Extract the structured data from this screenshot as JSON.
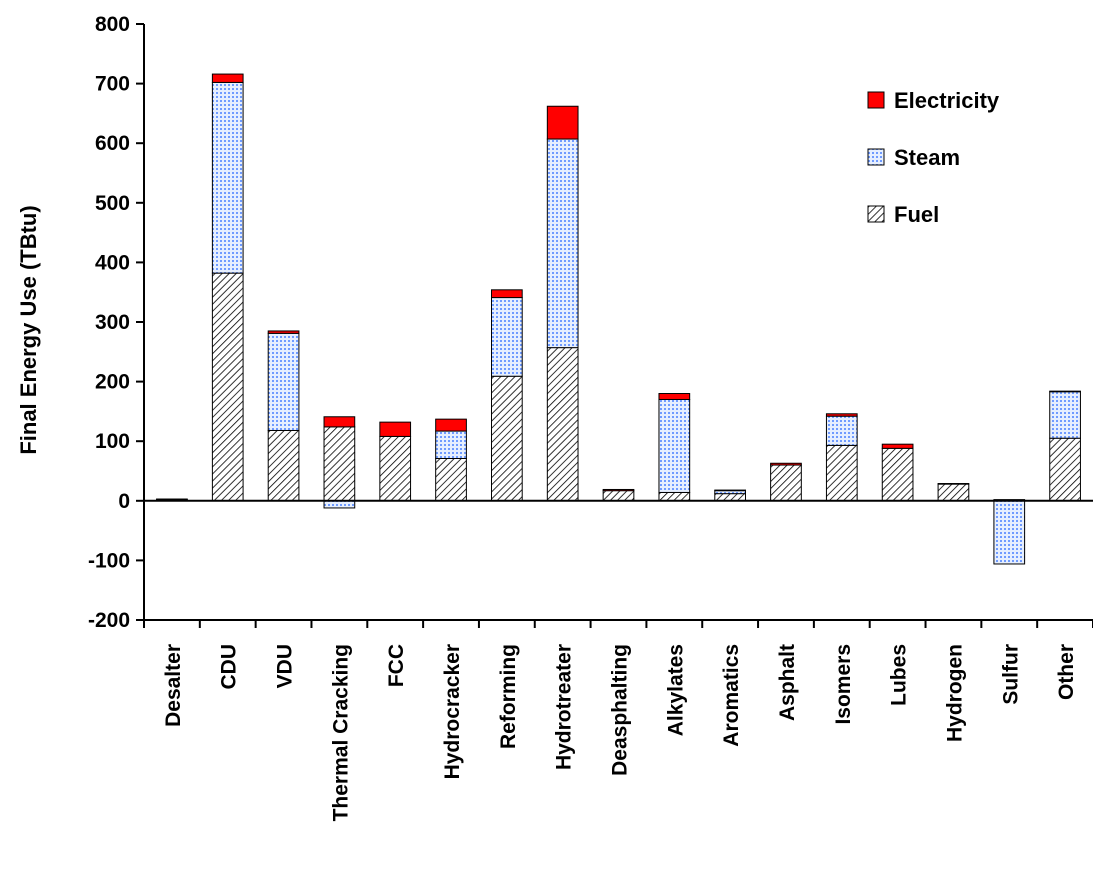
{
  "chart_data": {
    "type": "bar",
    "stacked": true,
    "ylabel": "Final Energy Use (TBtu)",
    "xlabel": "",
    "ylim": [
      -200,
      800
    ],
    "yticks": [
      -200,
      -100,
      0,
      100,
      200,
      300,
      400,
      500,
      600,
      700,
      800
    ],
    "grid": false,
    "legend_position": "top-right",
    "categories": [
      "Desalter",
      "CDU",
      "VDU",
      "Thermal Cracking",
      "FCC",
      "Hydrocracker",
      "Reforming",
      "Hydrotreater",
      "Deasphalting",
      "Alkylates",
      "Aromatics",
      "Asphalt",
      "Isomers",
      "Lubes",
      "Hydrogen",
      "Sulfur",
      "Other"
    ],
    "series": [
      {
        "name": "Fuel",
        "pattern": "diagonal-hatch",
        "color": "#ffffff",
        "values": [
          2,
          382,
          118,
          124,
          108,
          71,
          209,
          257,
          17,
          14,
          12,
          60,
          93,
          88,
          28,
          0,
          105
        ]
      },
      {
        "name": "Steam",
        "pattern": "blue-dots",
        "color": "#cfe0ff",
        "values": [
          0,
          320,
          163,
          -12,
          0,
          46,
          132,
          350,
          0,
          156,
          5,
          0,
          49,
          0,
          0,
          -106,
          78
        ]
      },
      {
        "name": "Electricity",
        "pattern": "solid",
        "color": "#ff0000",
        "values": [
          1,
          14,
          4,
          17,
          24,
          20,
          13,
          55,
          2,
          10,
          1,
          3,
          4,
          7,
          1,
          2,
          1
        ]
      }
    ],
    "legend_order": [
      "Electricity",
      "Steam",
      "Fuel"
    ]
  }
}
